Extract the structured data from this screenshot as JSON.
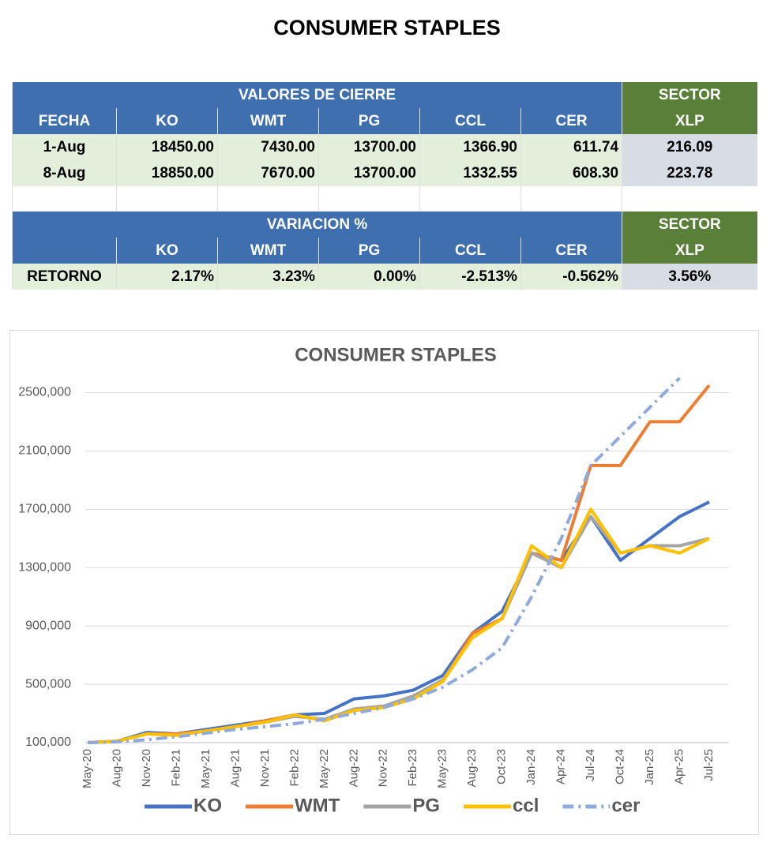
{
  "header": {
    "title": "CONSUMER STAPLES"
  },
  "table1": {
    "group": "VALORES DE CIERRE",
    "sector": "SECTOR",
    "columns": [
      "FECHA",
      "KO",
      "WMT",
      "PG",
      "CCL",
      "CER",
      "XLP"
    ],
    "rows": [
      [
        "1-Aug",
        "18450.00",
        "7430.00",
        "13700.00",
        "1366.90",
        "611.74",
        "216.09"
      ],
      [
        "8-Aug",
        "18850.00",
        "7670.00",
        "13700.00",
        "1332.55",
        "608.30",
        "223.78"
      ]
    ]
  },
  "table2": {
    "group": "VARIACION %",
    "sector": "SECTOR",
    "columns": [
      "KO",
      "WMT",
      "PG",
      "CCL",
      "CER",
      "XLP"
    ],
    "rows": [
      [
        "RETORNO",
        "2.17%",
        "3.23%",
        "0.00%",
        "-2.513%",
        "-0.562%",
        "3.56%"
      ]
    ]
  },
  "chart_data": {
    "type": "line",
    "title": "CONSUMER STAPLES",
    "categories": [
      "May-20",
      "Aug-20",
      "Nov-20",
      "Feb-21",
      "May-21",
      "Aug-21",
      "Nov-21",
      "Feb-22",
      "May-22",
      "Aug-22",
      "Nov-22",
      "Feb-23",
      "May-23",
      "Aug-23",
      "Oct-23",
      "Jan-24",
      "Apr-24",
      "Jul-24",
      "Oct-24",
      "Jan-25",
      "Apr-25",
      "Jul-25"
    ],
    "series": [
      {
        "name": "KO",
        "color": "#4472c4",
        "values": [
          100000,
          110000,
          170000,
          160000,
          190000,
          220000,
          250000,
          290000,
          300000,
          400000,
          420000,
          460000,
          560000,
          850000,
          1000000,
          1400000,
          1350000,
          1650000,
          1350000,
          1500000,
          1650000,
          1750000
        ]
      },
      {
        "name": "WMT",
        "color": "#ed7d31",
        "values": [
          100000,
          110000,
          160000,
          160000,
          180000,
          210000,
          250000,
          290000,
          250000,
          330000,
          350000,
          400000,
          520000,
          850000,
          950000,
          1400000,
          1350000,
          2000000,
          2000000,
          2300000,
          2300000,
          2550000
        ]
      },
      {
        "name": "PG",
        "color": "#a5a5a5",
        "values": [
          100000,
          110000,
          160000,
          150000,
          180000,
          210000,
          240000,
          280000,
          260000,
          330000,
          350000,
          420000,
          530000,
          820000,
          950000,
          1400000,
          1300000,
          1650000,
          1400000,
          1450000,
          1450000,
          1500000
        ]
      },
      {
        "name": "ccl",
        "color": "#ffc000",
        "values": [
          100000,
          110000,
          160000,
          150000,
          180000,
          210000,
          240000,
          290000,
          250000,
          320000,
          340000,
          400000,
          520000,
          820000,
          950000,
          1450000,
          1300000,
          1700000,
          1400000,
          1450000,
          1400000,
          1500000
        ]
      },
      {
        "name": "cer",
        "color": "#8faadc",
        "dash": "dash-dot",
        "values": [
          100000,
          105000,
          120000,
          140000,
          165000,
          190000,
          210000,
          230000,
          260000,
          300000,
          340000,
          400000,
          480000,
          600000,
          750000,
          1100000,
          1500000,
          2000000,
          2200000,
          2400000,
          2600000,
          null
        ]
      }
    ],
    "ylim": [
      100000,
      2600000
    ],
    "yticks": [
      {
        "value": 100000,
        "label": "100,000"
      },
      {
        "value": 500000,
        "label": "500,000"
      },
      {
        "value": 900000,
        "label": "900,000"
      },
      {
        "value": 1300000,
        "label": "1300,000"
      },
      {
        "value": 1700000,
        "label": "1700,000"
      },
      {
        "value": 2100000,
        "label": "2100,000"
      },
      {
        "value": 2500000,
        "label": "2500,000"
      }
    ],
    "grid": true,
    "legend": "bottom"
  }
}
